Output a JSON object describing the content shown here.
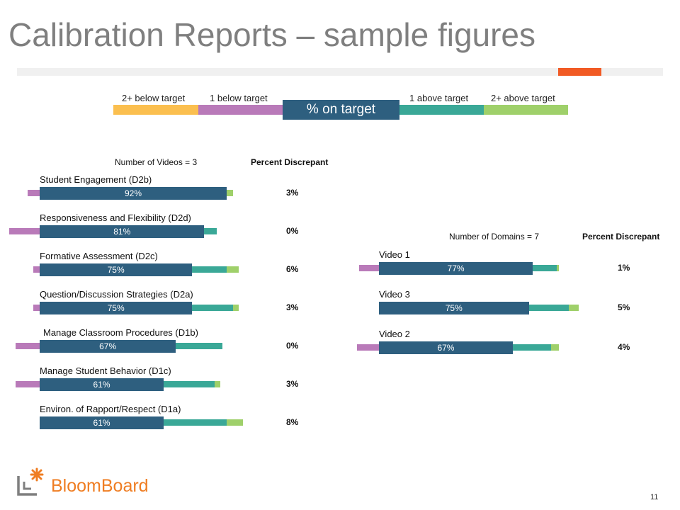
{
  "slide": {
    "title": "Calibration Reports – sample figures",
    "page_number": "11",
    "logo_text": "BloomBoard"
  },
  "legend": {
    "labels": [
      "2+ below target",
      "1 below target",
      "% on target",
      "1 above target",
      "2+ above target"
    ],
    "colors": {
      "two_below": "#fbbf4f",
      "one_below": "#b97ab9",
      "on_target": "#2e5f7f",
      "one_above": "#3aa897",
      "two_above": "#9fd06a"
    }
  },
  "chart_data": [
    {
      "type": "bar",
      "header_left": "Number of Videos = 3",
      "header_right": "Percent Discrepant",
      "categories": [
        "Student Engagement (D2b)",
        "Responsiveness and Flexibility (D2d)",
        "Formative Assessment (D2c)",
        "Question/Discussion Strategies (D2a)",
        "Manage Classroom Procedures    (D1b)",
        "Manage Student Behavior (D1c)",
        "Environ. of Rapport/Respect  (D1a)"
      ],
      "series": [
        {
          "values": [
            0,
            0,
            0,
            0,
            0,
            0,
            0
          ]
        },
        {
          "values": [
            6,
            15,
            3,
            3,
            12,
            12,
            0
          ]
        },
        {
          "values": [
            92,
            81,
            75,
            75,
            67,
            61,
            61
          ]
        },
        {
          "values": [
            0,
            6,
            17,
            20,
            23,
            25,
            31
          ]
        },
        {
          "values": [
            3,
            0,
            6,
            3,
            0,
            3,
            8
          ]
        }
      ],
      "value_labels": [
        "92%",
        "81%",
        "75%",
        "75%",
        "67%",
        "61%",
        "61%"
      ],
      "percent_discrepant": [
        "3%",
        "0%",
        "6%",
        "3%",
        "0%",
        "3%",
        "8%"
      ]
    },
    {
      "type": "bar",
      "header_left": "Number of Domains = 7",
      "header_right": "Percent Discrepant",
      "categories": [
        "Video 1",
        "Video 3",
        "Video 2"
      ],
      "series": [
        {
          "values": [
            0,
            0,
            0
          ]
        },
        {
          "values": [
            10,
            0,
            11
          ]
        },
        {
          "values": [
            77,
            75,
            67
          ]
        },
        {
          "values": [
            12,
            20,
            19
          ]
        },
        {
          "values": [
            1,
            5,
            4
          ]
        }
      ],
      "value_labels": [
        "77%",
        "75%",
        "67%"
      ],
      "percent_discrepant": [
        "1%",
        "5%",
        "4%"
      ]
    }
  ]
}
